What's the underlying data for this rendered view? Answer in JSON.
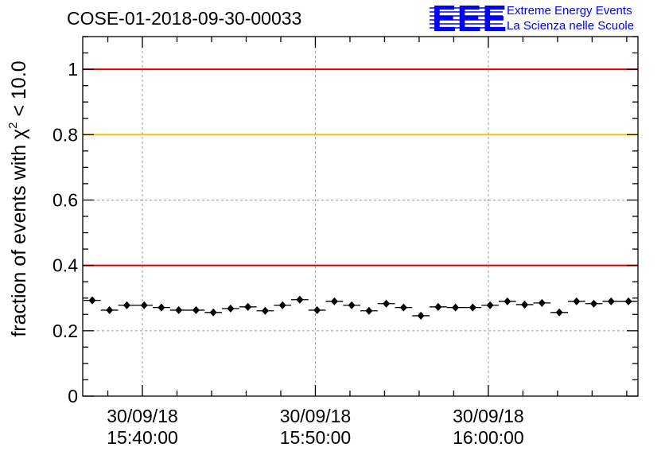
{
  "header": {
    "title": "COSE-01-2018-09-30-00033",
    "logo_text": "EEE",
    "brand_line1": "Extreme Energy Events",
    "brand_line2": "La Scienza nelle Scuole"
  },
  "colors": {
    "threshold_red": "#e00000",
    "threshold_yellow": "#ffc000",
    "markers": "#000000",
    "brand": "#0000ff"
  },
  "chart_data": {
    "type": "scatter",
    "title": "COSE-01-2018-09-30-00033",
    "xlabel": "",
    "ylabel_prefix": "fraction of events with ",
    "ylabel_symbol": "χ",
    "ylabel_superscript": "2",
    "ylabel_suffix": " < 10.0",
    "ylim": [
      0,
      1.1
    ],
    "yticks": [
      0,
      0.2,
      0.4,
      0.6,
      0.8,
      1
    ],
    "ytick_labels": [
      "0",
      "0.2",
      "0.4",
      "0.6",
      "0.8",
      "1"
    ],
    "xlim_minutes": [
      -3.45,
      28.65
    ],
    "xticks": [
      {
        "minute": 0,
        "date": "30/09/18",
        "time": "15:40:00"
      },
      {
        "minute": 10,
        "date": "30/09/18",
        "time": "15:50:00"
      },
      {
        "minute": 20,
        "date": "30/09/18",
        "time": "16:00:00"
      }
    ],
    "minor_tick_step_minutes": 2,
    "grid": true,
    "thresholds": [
      {
        "value": 1.0,
        "color": "red"
      },
      {
        "value": 0.8,
        "color": "yellow"
      },
      {
        "value": 0.4,
        "color": "red"
      }
    ],
    "bin_width_minutes": 1,
    "x_minutes": [
      -2.9,
      -1.9,
      -0.9,
      0.1,
      1.1,
      2.1,
      3.1,
      4.1,
      5.1,
      6.1,
      7.1,
      8.1,
      9.1,
      10.1,
      11.1,
      12.1,
      13.1,
      14.1,
      15.1,
      16.1,
      17.1,
      18.1,
      19.1,
      20.1,
      21.1,
      22.1,
      23.1,
      24.1,
      25.1,
      26.1,
      27.1,
      28.1
    ],
    "y": [
      0.293,
      0.263,
      0.278,
      0.278,
      0.271,
      0.263,
      0.263,
      0.256,
      0.268,
      0.273,
      0.261,
      0.278,
      0.295,
      0.263,
      0.29,
      0.278,
      0.261,
      0.283,
      0.271,
      0.246,
      0.273,
      0.271,
      0.271,
      0.278,
      0.29,
      0.28,
      0.285,
      0.256,
      0.29,
      0.283,
      0.29,
      0.29
    ],
    "y_err": [
      0.005,
      0.005,
      0.005,
      0.005,
      0.005,
      0.005,
      0.005,
      0.005,
      0.005,
      0.005,
      0.005,
      0.005,
      0.005,
      0.005,
      0.005,
      0.005,
      0.005,
      0.005,
      0.005,
      0.005,
      0.005,
      0.005,
      0.005,
      0.005,
      0.005,
      0.005,
      0.005,
      0.005,
      0.005,
      0.005,
      0.005,
      0.005
    ]
  }
}
